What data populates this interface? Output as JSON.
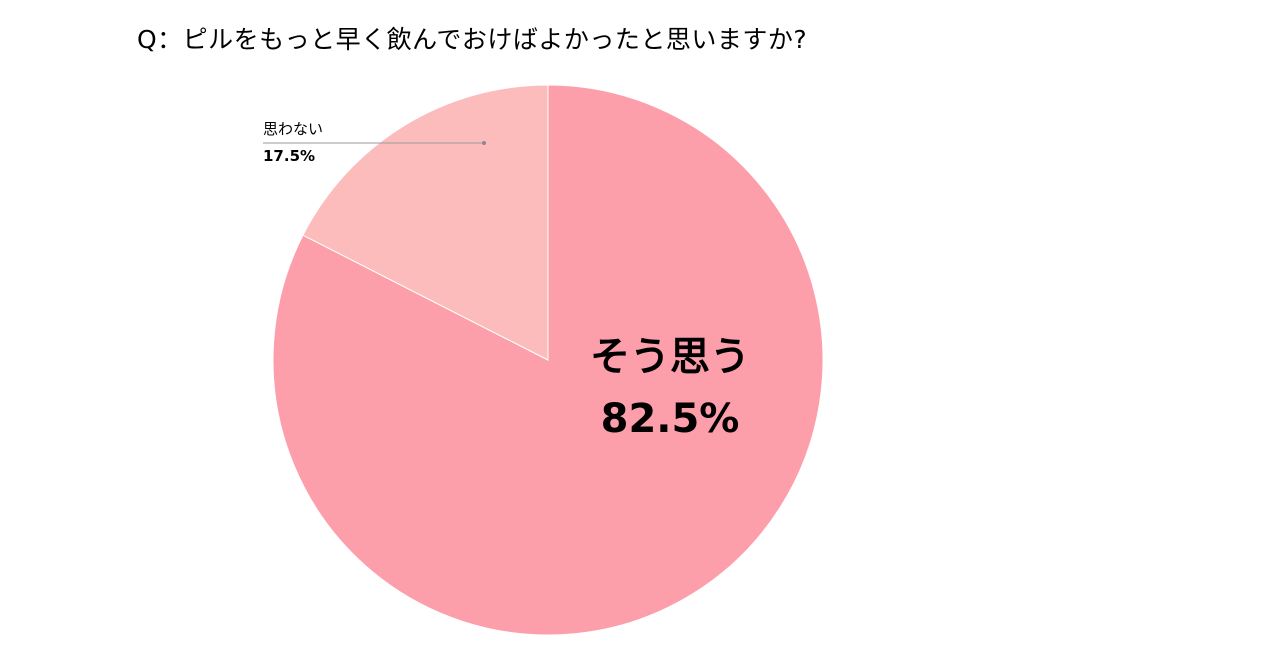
{
  "chart_data": {
    "type": "pie",
    "title": "Q：ピルをもっと早く飲んでおけばよかったと思いますか?",
    "slices": [
      {
        "label": "そう思う",
        "value": 82.5,
        "value_label": "82.5%",
        "color": "#fd9eab"
      },
      {
        "label": "思わない",
        "value": 17.5,
        "value_label": "17.5%",
        "color": "#fcbcbc"
      }
    ],
    "start_angle_deg": 0,
    "direction": "clockwise",
    "legend": "none"
  }
}
